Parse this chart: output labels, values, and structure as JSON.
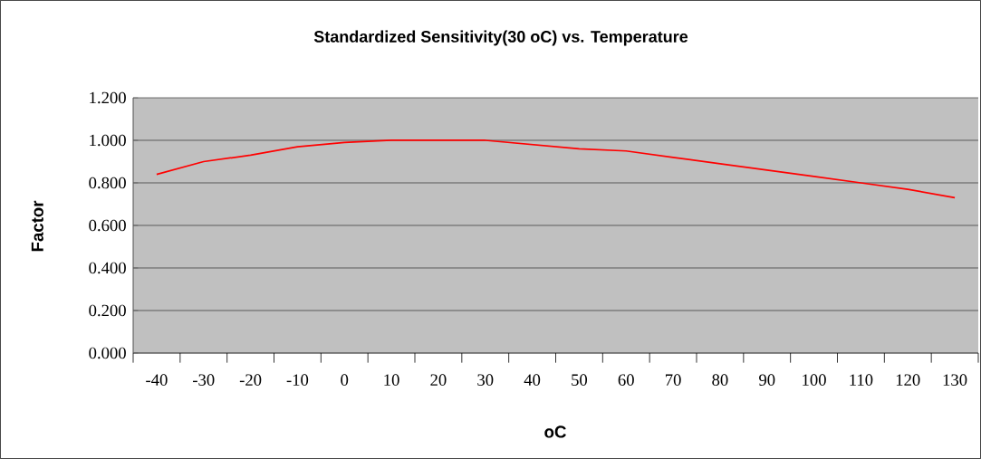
{
  "chart_data": {
    "type": "line",
    "title": "Standardized Sensitivity(30 oC) vs. Temperature",
    "xlabel": "oC",
    "ylabel": "Factor",
    "categories": [
      "-40",
      "-30",
      "-20",
      "-10",
      "0",
      "10",
      "20",
      "30",
      "40",
      "50",
      "60",
      "70",
      "80",
      "90",
      "100",
      "110",
      "120",
      "130"
    ],
    "series": [
      {
        "color": "#ff0000",
        "values": [
          0.84,
          0.9,
          0.93,
          0.97,
          0.99,
          1.0,
          1.0,
          1.0,
          0.98,
          0.96,
          0.95,
          0.92,
          0.89,
          0.86,
          0.83,
          0.8,
          0.77,
          0.73
        ]
      }
    ],
    "ylim": [
      0,
      1.2
    ],
    "yticks": [
      {
        "value": 0,
        "label": "0.000"
      },
      {
        "value": 0.2,
        "label": "0.200"
      },
      {
        "value": 0.4,
        "label": "0.400"
      },
      {
        "value": 0.6,
        "label": "0.600"
      },
      {
        "value": 0.8,
        "label": "0.800"
      },
      {
        "value": 1.0,
        "label": "1.000"
      },
      {
        "value": 1.2,
        "label": "1.200"
      }
    ],
    "grid": "y"
  }
}
